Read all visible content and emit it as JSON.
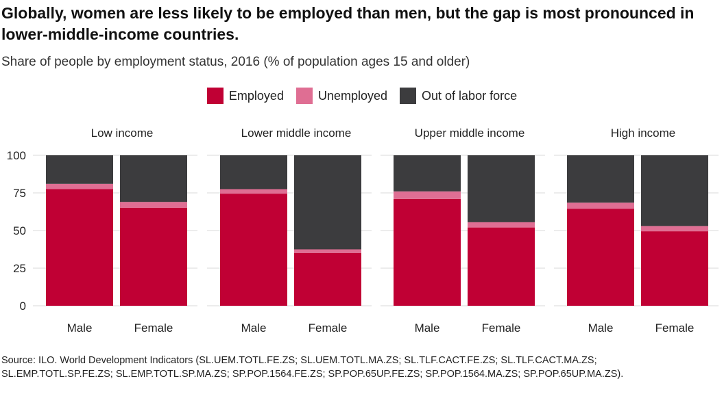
{
  "title": "Globally, women are less likely to be employed than men, but the gap is most pronounced in lower-middle-income countries.",
  "subtitle": "Share of people by employment status, 2016 (% of population ages 15 and older)",
  "source_lines": [
    "Source: ILO. World Development Indicators (SL.UEM.TOTL.FE.ZS; SL.UEM.TOTL.MA.ZS; SL.TLF.CACT.FE.ZS; SL.TLF.CACT.MA.ZS;",
    "SL.EMP.TOTL.SP.FE.ZS; SL.EMP.TOTL.SP.MA.ZS; SP.POP.1564.FE.ZS; SP.POP.65UP.FE.ZS; SP.POP.1564.MA.ZS; SP.POP.65UP.MA.ZS)."
  ],
  "colors": {
    "employed": "#c00034",
    "unemployed": "#df6e93",
    "out_of_labor_force": "#3c3c3e",
    "grid": "#e6e6e6",
    "text": "#222222"
  },
  "chart_data": {
    "type": "bar",
    "stacked": true,
    "faceted": true,
    "ylim": [
      0,
      100
    ],
    "yticks": [
      0,
      25,
      50,
      75,
      100
    ],
    "grid": true,
    "legend_position": "top-center",
    "legend": [
      "Employed",
      "Unemployed",
      "Out of labor force"
    ],
    "categories": [
      "Male",
      "Female"
    ],
    "panels": [
      {
        "name": "Low income",
        "series": [
          {
            "name": "Employed",
            "values": [
              77.5,
              65
            ]
          },
          {
            "name": "Unemployed",
            "values": [
              3.5,
              4
            ]
          },
          {
            "name": "Out of labor force",
            "values": [
              19,
              31
            ]
          }
        ]
      },
      {
        "name": "Lower middle income",
        "series": [
          {
            "name": "Employed",
            "values": [
              74.5,
              35
            ]
          },
          {
            "name": "Unemployed",
            "values": [
              3,
              2.5
            ]
          },
          {
            "name": "Out of labor force",
            "values": [
              22.5,
              62.5
            ]
          }
        ]
      },
      {
        "name": "Upper middle income",
        "series": [
          {
            "name": "Employed",
            "values": [
              71,
              52
            ]
          },
          {
            "name": "Unemployed",
            "values": [
              5,
              3.5
            ]
          },
          {
            "name": "Out of labor force",
            "values": [
              24,
              44.5
            ]
          }
        ]
      },
      {
        "name": "High income",
        "series": [
          {
            "name": "Employed",
            "values": [
              64.5,
              49.5
            ]
          },
          {
            "name": "Unemployed",
            "values": [
              4,
              3.5
            ]
          },
          {
            "name": "Out of labor force",
            "values": [
              31.5,
              47
            ]
          }
        ]
      }
    ]
  }
}
